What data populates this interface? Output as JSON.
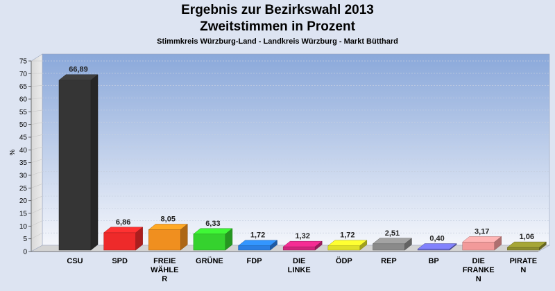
{
  "chart_data": {
    "type": "bar",
    "title": "Ergebnis zur Bezirkswahl 2013",
    "subtitle": "Zweitstimmen in Prozent",
    "subsubtitle": "Stimmkreis Würzburg-Land - Landkreis Würzburg - Markt Bütthard",
    "ylabel": "%",
    "xlabel": "",
    "ylim": [
      0,
      75
    ],
    "yticks": [
      0,
      5,
      10,
      15,
      20,
      25,
      30,
      35,
      40,
      45,
      50,
      55,
      60,
      65,
      70,
      75
    ],
    "grid": true,
    "categories": [
      [
        "CSU"
      ],
      [
        "SPD"
      ],
      [
        "FREIE",
        "WÄHLE",
        "R"
      ],
      [
        "GRÜNE"
      ],
      [
        "FDP"
      ],
      [
        "DIE",
        "LINKE"
      ],
      [
        "ÖDP"
      ],
      [
        "REP"
      ],
      [
        "BP"
      ],
      [
        "DIE",
        "FRANKE",
        "N"
      ],
      [
        "PIRATE",
        "N"
      ]
    ],
    "values": [
      66.89,
      6.86,
      8.05,
      6.33,
      1.72,
      1.32,
      1.72,
      2.51,
      0.4,
      3.17,
      1.06
    ],
    "value_labels": [
      "66,89",
      "6,86",
      "8,05",
      "6,33",
      "1,72",
      "1,32",
      "1,72",
      "2,51",
      "0,40",
      "3,17",
      "1,06"
    ],
    "colors": [
      "#353535",
      "#ee2a2a",
      "#f08f1f",
      "#35d22e",
      "#2b7fe3",
      "#d0267d",
      "#e0e02a",
      "#8a8a8a",
      "#6e6ed6",
      "#f29a9a",
      "#8d8d2f"
    ]
  }
}
